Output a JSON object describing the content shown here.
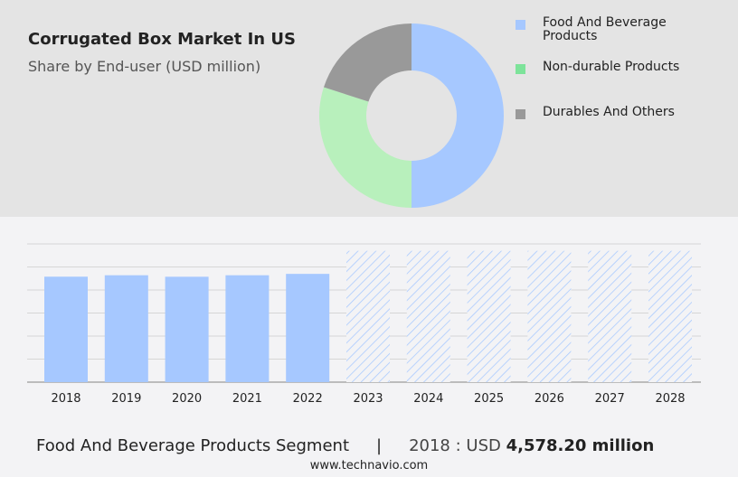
{
  "title": "Corrugated Box Market In US",
  "subtitle": "Share by End-user (USD million)",
  "legend": [
    {
      "label": "Food And Beverage Products",
      "color": "#a6c8ff"
    },
    {
      "label": "Non-durable Products",
      "color": "#7de39a"
    },
    {
      "label": "Durables And Others",
      "color": "#999999"
    }
  ],
  "footer": {
    "segment": "Food And Beverage Products Segment",
    "separator": "|",
    "year_label": "2018 : USD ",
    "value": "4,578.20 million"
  },
  "site": "www.technavio.com",
  "chart_data": [
    {
      "type": "pie",
      "donut": true,
      "categories": [
        "Food And Beverage Products",
        "Non-durable Products",
        "Durables And Others"
      ],
      "values": [
        50,
        30,
        20
      ],
      "colors": [
        "#a6c8ff",
        "#b8f0bc",
        "#999999"
      ]
    },
    {
      "type": "bar",
      "categories": [
        "2018",
        "2019",
        "2020",
        "2021",
        "2022",
        "2023",
        "2024",
        "2025",
        "2026",
        "2027",
        "2028"
      ],
      "values": [
        4578.2,
        4640,
        4575,
        4640,
        4700,
        5700,
        5700,
        5700,
        5700,
        5700,
        5700
      ],
      "forecast_from": "2023",
      "ylim": [
        0,
        6000
      ],
      "grid": true,
      "color": "#a6c8ff"
    }
  ]
}
